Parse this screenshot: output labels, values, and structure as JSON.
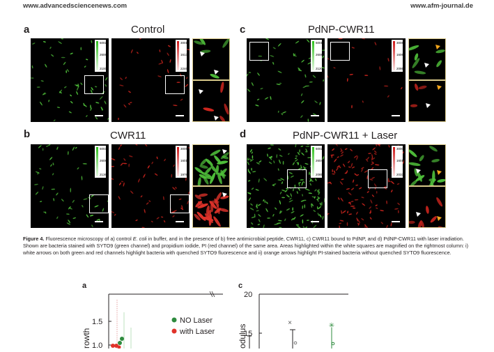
{
  "header": {
    "left_url": "www.advancedsciencenews.com",
    "right_url": "www.afm-journal.de"
  },
  "colors": {
    "green": "#4fbf3a",
    "red": "#e0332a",
    "inset_border": "#d9c98a"
  },
  "panels": {
    "a": {
      "label": "a",
      "title": "Control",
      "green_bar": {
        "max": "50021",
        "mid": "26065",
        "min": "2100"
      },
      "red_bar": {
        "max": "30017",
        "mid": "16132",
        "min": "2246"
      }
    },
    "b": {
      "label": "b",
      "title": "CWR11",
      "green_bar": {
        "max": "50031",
        "mid": "26084",
        "min": "2136"
      },
      "red_bar": {
        "max": "30053",
        "mid": "16016",
        "min": "1978"
      }
    },
    "c": {
      "label": "c",
      "title": "PdNP-CWR11",
      "green_bar": {
        "max": "50016",
        "mid": "26069",
        "min": "2120"
      },
      "red_bar": {
        "max": "30080",
        "mid": "16067",
        "min": "2095"
      }
    },
    "d": {
      "label": "d",
      "title": "PdNP-CWR11 + Laser",
      "green_bar": {
        "max": "50021",
        "mid": "26040",
        "min": "2085"
      },
      "red_bar": {
        "max": "30004",
        "mid": "16018",
        "min": "2033"
      }
    }
  },
  "caption": {
    "label": "Figure 4.",
    "text_1": "Fluorescence microscopy of a) control ",
    "italic": "E. coli",
    "text_2": " in buffer, and in the presence of b) free antimicrobial peptide, CWR11, c) CWR11 bound to PdNP, and d) PdNP-CWR11 with laser irradiation. Shown are bacteria stained with SYTO9 (green channel) and propidium iodide, PI (red channel) of the same area. Areas highlighted within the white squares are magnified on the rightmost column: i) white arrows on both green and red channels highlight bacteria with quenched SYTO9 fluorescence and ii) orange arrows highlight PI-stained bacteria without quenched SYTO9 fluorescence."
  },
  "figure5": {
    "a": {
      "label": "a",
      "tick_top": "1.5",
      "tick_bottom": "1.0",
      "ylabel_fragment": "rowth",
      "legend": [
        {
          "name": "NO Laser",
          "color": "#2e8b3e"
        },
        {
          "name": "with Laser",
          "color": "#e0332a"
        }
      ]
    },
    "c": {
      "label": "c",
      "tick_top": "20",
      "tick_bottom": "15",
      "ylabel_fragment": "odulus"
    }
  }
}
